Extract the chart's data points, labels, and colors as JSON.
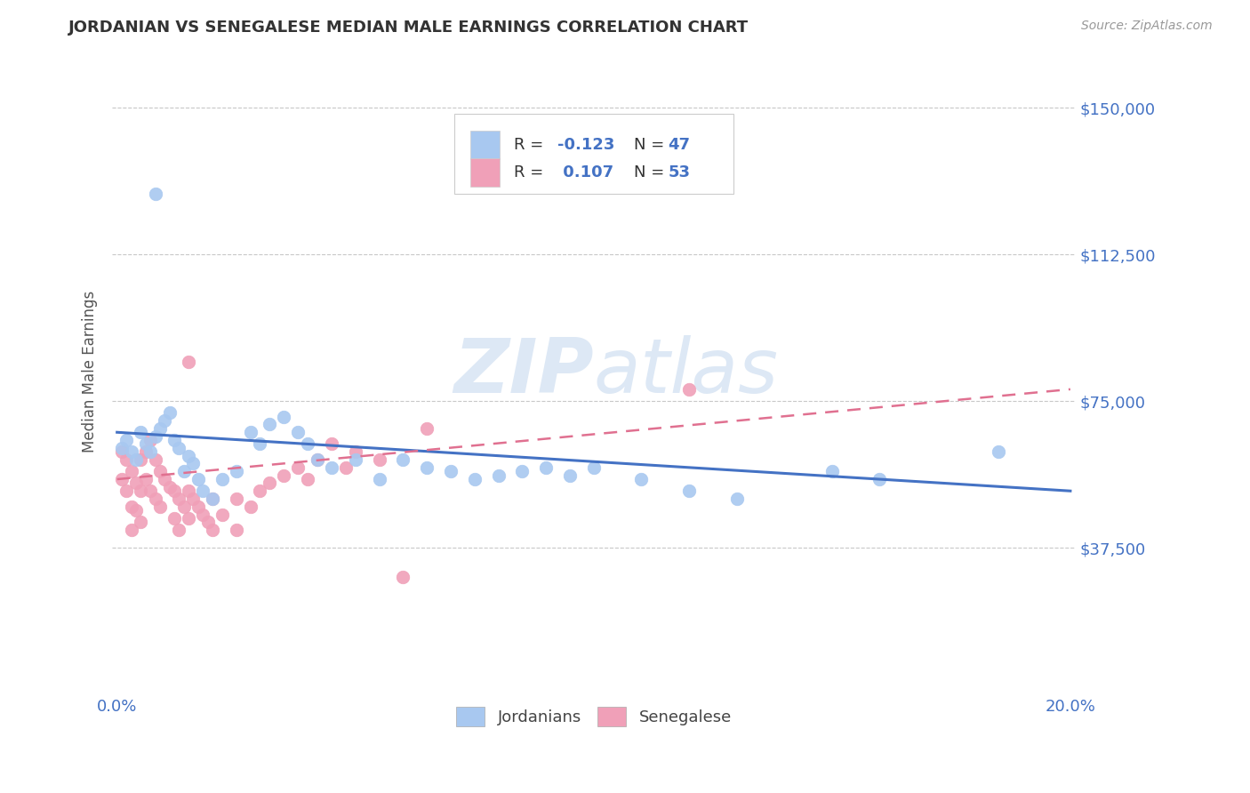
{
  "title": "JORDANIAN VS SENEGALESE MEDIAN MALE EARNINGS CORRELATION CHART",
  "source_text": "Source: ZipAtlas.com",
  "ylabel": "Median Male Earnings",
  "xlim": [
    -0.001,
    0.201
  ],
  "ylim": [
    0,
    165000
  ],
  "xtick_values": [
    0.0,
    0.2
  ],
  "xtick_labels": [
    "0.0%",
    "20.0%"
  ],
  "ytick_values": [
    37500,
    75000,
    112500,
    150000
  ],
  "ytick_labels": [
    "$37,500",
    "$75,000",
    "$112,500",
    "$150,000"
  ],
  "grid_color": "#c8c8c8",
  "background_color": "#ffffff",
  "blue_color": "#a8c8f0",
  "pink_color": "#f0a0b8",
  "blue_line_color": "#4472c4",
  "pink_line_color": "#e07090",
  "watermark_color": "#dde8f5",
  "title_color": "#333333",
  "axis_label_color": "#4472c4",
  "legend_text_color": "#333333",
  "legend_value_color": "#4472c4",
  "jordanians_label": "Jordanians",
  "senegalese_label": "Senegalese",
  "jordan_x": [
    0.001,
    0.002,
    0.003,
    0.004,
    0.005,
    0.006,
    0.007,
    0.008,
    0.009,
    0.01,
    0.011,
    0.012,
    0.013,
    0.014,
    0.015,
    0.016,
    0.017,
    0.018,
    0.02,
    0.022,
    0.025,
    0.028,
    0.03,
    0.032,
    0.035,
    0.038,
    0.04,
    0.042,
    0.045,
    0.05,
    0.055,
    0.06,
    0.065,
    0.07,
    0.075,
    0.08,
    0.085,
    0.09,
    0.095,
    0.1,
    0.11,
    0.12,
    0.13,
    0.15,
    0.16,
    0.185,
    0.008
  ],
  "jordan_y": [
    63000,
    65000,
    62000,
    60000,
    67000,
    64000,
    62000,
    66000,
    68000,
    70000,
    72000,
    65000,
    63000,
    57000,
    61000,
    59000,
    55000,
    52000,
    50000,
    55000,
    57000,
    67000,
    64000,
    69000,
    71000,
    67000,
    64000,
    60000,
    58000,
    60000,
    55000,
    60000,
    58000,
    57000,
    55000,
    56000,
    57000,
    58000,
    56000,
    58000,
    55000,
    52000,
    50000,
    57000,
    55000,
    62000,
    128000
  ],
  "senegal_x": [
    0.001,
    0.001,
    0.002,
    0.002,
    0.003,
    0.003,
    0.003,
    0.004,
    0.004,
    0.005,
    0.005,
    0.005,
    0.006,
    0.006,
    0.007,
    0.007,
    0.008,
    0.008,
    0.009,
    0.009,
    0.01,
    0.011,
    0.012,
    0.012,
    0.013,
    0.013,
    0.014,
    0.015,
    0.015,
    0.016,
    0.017,
    0.018,
    0.019,
    0.02,
    0.02,
    0.022,
    0.025,
    0.025,
    0.028,
    0.03,
    0.032,
    0.035,
    0.038,
    0.04,
    0.042,
    0.045,
    0.048,
    0.05,
    0.055,
    0.06,
    0.065,
    0.12,
    0.015
  ],
  "senegal_y": [
    62000,
    55000,
    60000,
    52000,
    57000,
    48000,
    42000,
    54000,
    47000,
    60000,
    52000,
    44000,
    62000,
    55000,
    65000,
    52000,
    60000,
    50000,
    57000,
    48000,
    55000,
    53000,
    52000,
    45000,
    50000,
    42000,
    48000,
    52000,
    45000,
    50000,
    48000,
    46000,
    44000,
    50000,
    42000,
    46000,
    50000,
    42000,
    48000,
    52000,
    54000,
    56000,
    58000,
    55000,
    60000,
    64000,
    58000,
    62000,
    60000,
    30000,
    68000,
    78000,
    85000
  ],
  "jordan_line_x": [
    0.0,
    0.2
  ],
  "jordan_line_y": [
    67000,
    52000
  ],
  "senegal_line_x": [
    0.0,
    0.2
  ],
  "senegal_line_y": [
    55000,
    78000
  ]
}
